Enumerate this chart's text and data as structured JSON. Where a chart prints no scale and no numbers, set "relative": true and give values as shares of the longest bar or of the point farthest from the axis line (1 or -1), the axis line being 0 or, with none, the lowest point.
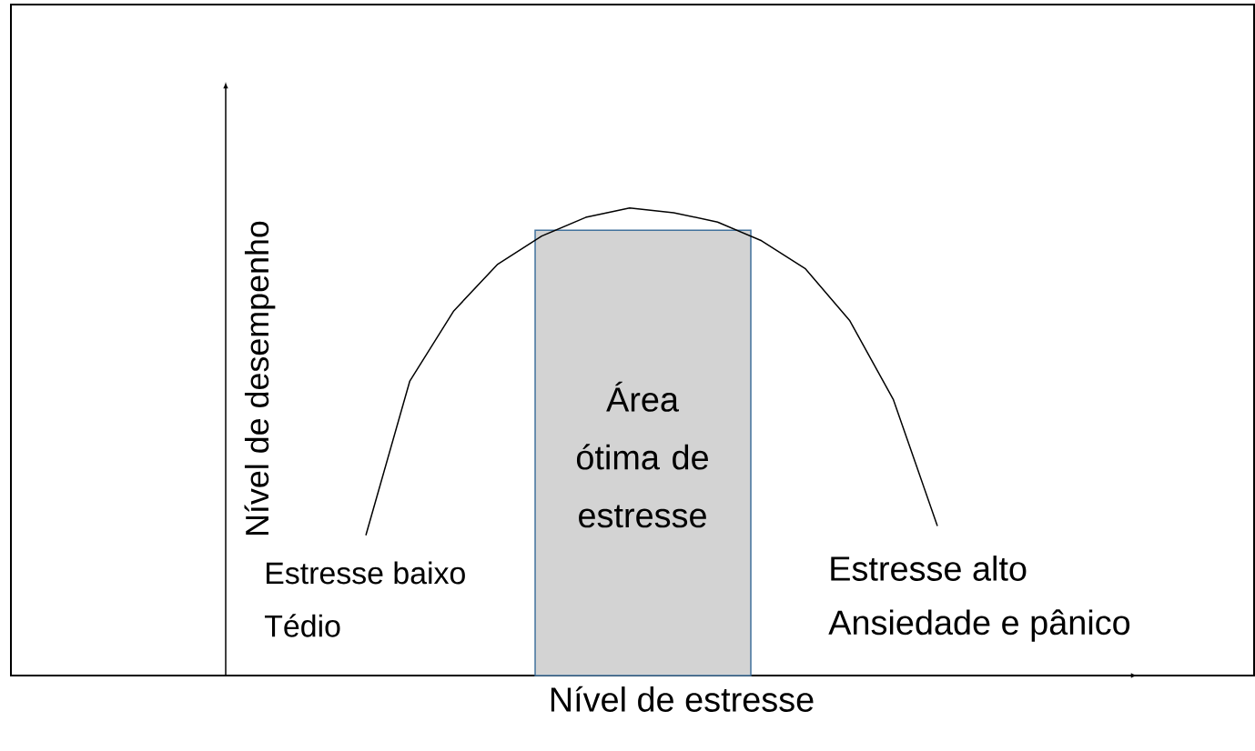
{
  "chart_data": {
    "type": "line",
    "relative": true,
    "xlabel": "Nível de estresse",
    "ylabel": "Nível de desempenho",
    "categories": [
      null,
      null,
      null,
      null,
      null,
      null,
      null,
      null,
      null,
      null,
      null,
      null,
      null,
      null
    ],
    "values": [
      0.3,
      0.63,
      0.78,
      0.88,
      0.94,
      0.98,
      1.0,
      0.99,
      0.97,
      0.93,
      0.87,
      0.76,
      0.59,
      0.32
    ],
    "color": "#000000",
    "annotations": [
      "Área ótima de estresse",
      "Estresse baixo",
      "Tédio",
      "Estresse alto",
      "Ansiedade e pânico"
    ]
  }
}
